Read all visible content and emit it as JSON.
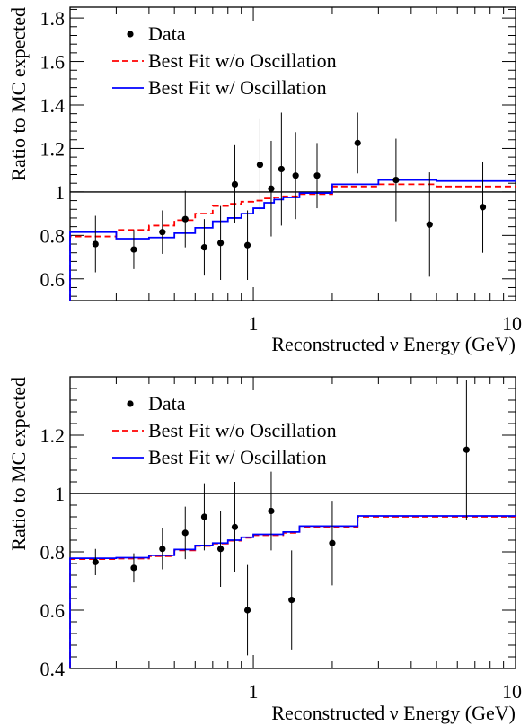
{
  "chart_data": [
    {
      "type": "scatter",
      "xlabel": "Reconstructed ν Energy (GeV)",
      "ylabel": "Ratio to MC expected",
      "xscale": "log",
      "xlim": [
        0.2,
        10
      ],
      "ylim": [
        0.5,
        1.85
      ],
      "x_tick_labels": [
        {
          "value": 1,
          "label": "1"
        },
        {
          "value": 10,
          "label": "10"
        }
      ],
      "y_ticks": [
        0.6,
        0.8,
        1.0,
        1.2,
        1.4,
        1.6,
        1.8
      ],
      "y_tick_labels": [
        "0.6",
        "0.8",
        "1",
        "1.2",
        "1.4",
        "1.6",
        "1.8"
      ],
      "reference_line": 1.0,
      "legend": {
        "position": "top-left",
        "entries": [
          "Data",
          "Best Fit w/o Oscillation",
          "Best Fit w/ Oscillation"
        ]
      },
      "series": [
        {
          "name": "Data",
          "style": "points-with-errors",
          "color": "#000000",
          "points": [
            {
              "x": 0.25,
              "y": 0.76,
              "err": 0.13
            },
            {
              "x": 0.35,
              "y": 0.735,
              "err": 0.09
            },
            {
              "x": 0.45,
              "y": 0.815,
              "err": 0.1
            },
            {
              "x": 0.55,
              "y": 0.875,
              "err": 0.13
            },
            {
              "x": 0.65,
              "y": 0.745,
              "err": 0.13
            },
            {
              "x": 0.75,
              "y": 0.765,
              "err": 0.17
            },
            {
              "x": 0.85,
              "y": 1.035,
              "err": 0.18
            },
            {
              "x": 0.95,
              "y": 0.755,
              "err": 0.16
            },
            {
              "x": 1.06,
              "y": 1.125,
              "err": 0.21
            },
            {
              "x": 1.17,
              "y": 1.015,
              "err": 0.22
            },
            {
              "x": 1.28,
              "y": 1.105,
              "err": 0.26
            },
            {
              "x": 1.45,
              "y": 1.075,
              "err": 0.2
            },
            {
              "x": 1.75,
              "y": 1.075,
              "err": 0.15
            },
            {
              "x": 2.5,
              "y": 1.225,
              "err": 0.14
            },
            {
              "x": 3.5,
              "y": 1.055,
              "err": 0.19
            },
            {
              "x": 4.7,
              "y": 0.85,
              "err": 0.24
            },
            {
              "x": 7.5,
              "y": 0.93,
              "err": 0.21
            }
          ]
        },
        {
          "name": "Best Fit w/o Oscillation",
          "style": "step-dashed",
          "color": "#ff0000",
          "edges": [
            0.2,
            0.3,
            0.4,
            0.5,
            0.6,
            0.7,
            0.8,
            0.9,
            1.0,
            1.1,
            1.2,
            1.3,
            1.5,
            2.0,
            3.0,
            5.0,
            10.0
          ],
          "values": [
            0.795,
            0.825,
            0.845,
            0.87,
            0.9,
            0.935,
            0.945,
            0.955,
            0.96,
            0.97,
            0.975,
            0.98,
            0.99,
            1.025,
            1.035,
            1.025
          ]
        },
        {
          "name": "Best Fit w/ Oscillation",
          "style": "step-solid",
          "color": "#0000ff",
          "edges": [
            0.2,
            0.3,
            0.4,
            0.5,
            0.6,
            0.7,
            0.8,
            0.9,
            1.0,
            1.1,
            1.2,
            1.3,
            1.5,
            2.0,
            3.0,
            5.0,
            10.0
          ],
          "values": [
            0.815,
            0.785,
            0.79,
            0.81,
            0.835,
            0.865,
            0.88,
            0.9,
            0.925,
            0.95,
            0.965,
            0.975,
            0.995,
            1.035,
            1.055,
            1.05
          ]
        }
      ]
    },
    {
      "type": "scatter",
      "xlabel": "Reconstructed ν Energy (GeV)",
      "ylabel": "Ratio to MC expected",
      "xscale": "log",
      "xlim": [
        0.2,
        10
      ],
      "ylim": [
        0.4,
        1.4
      ],
      "x_tick_labels": [
        {
          "value": 1,
          "label": "1"
        },
        {
          "value": 10,
          "label": "10"
        }
      ],
      "y_ticks": [
        0.4,
        0.6,
        0.8,
        1.0,
        1.2
      ],
      "y_tick_labels": [
        "0.4",
        "0.6",
        "0.8",
        "1",
        "1.2"
      ],
      "reference_line": 1.0,
      "legend": {
        "position": "top-left",
        "entries": [
          "Data",
          "Best Fit w/o Oscillation",
          "Best Fit w/ Oscillation"
        ]
      },
      "series": [
        {
          "name": "Data",
          "style": "points-with-errors",
          "color": "#000000",
          "points": [
            {
              "x": 0.25,
              "y": 0.765,
              "err": 0.045
            },
            {
              "x": 0.35,
              "y": 0.745,
              "err": 0.05
            },
            {
              "x": 0.45,
              "y": 0.81,
              "err": 0.07
            },
            {
              "x": 0.55,
              "y": 0.865,
              "err": 0.09
            },
            {
              "x": 0.65,
              "y": 0.92,
              "err": 0.115
            },
            {
              "x": 0.75,
              "y": 0.81,
              "err": 0.13
            },
            {
              "x": 0.85,
              "y": 0.885,
              "err": 0.155
            },
            {
              "x": 0.95,
              "y": 0.6,
              "err": 0.155
            },
            {
              "x": 1.17,
              "y": 0.94,
              "err": 0.135
            },
            {
              "x": 1.4,
              "y": 0.635,
              "err": 0.17
            },
            {
              "x": 2.0,
              "y": 0.83,
              "err": 0.145
            },
            {
              "x": 6.5,
              "y": 1.15,
              "err": 0.24
            }
          ]
        },
        {
          "name": "Best Fit w/o Oscillation",
          "style": "step-dashed",
          "color": "#ff0000",
          "edges": [
            0.2,
            0.3,
            0.4,
            0.5,
            0.6,
            0.7,
            0.8,
            0.9,
            1.0,
            1.3,
            1.5,
            2.5,
            10.0
          ],
          "values": [
            0.775,
            0.777,
            0.785,
            0.805,
            0.82,
            0.828,
            0.838,
            0.848,
            0.857,
            0.865,
            0.885,
            0.92
          ]
        },
        {
          "name": "Best Fit w/ Oscillation",
          "style": "step-solid",
          "color": "#0000ff",
          "edges": [
            0.2,
            0.3,
            0.4,
            0.5,
            0.6,
            0.7,
            0.8,
            0.9,
            1.0,
            1.3,
            1.5,
            2.5,
            10.0
          ],
          "values": [
            0.778,
            0.78,
            0.788,
            0.808,
            0.822,
            0.83,
            0.84,
            0.85,
            0.86,
            0.868,
            0.888,
            0.923
          ]
        }
      ]
    }
  ]
}
